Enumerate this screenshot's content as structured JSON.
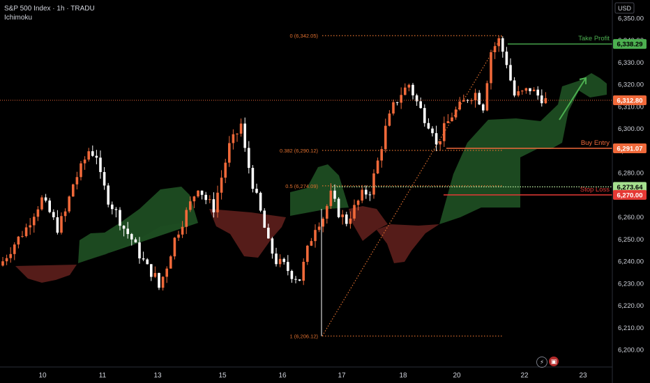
{
  "header": {
    "title": "S&P 500 Index · 1h · TRADU",
    "indicator": "Ichimoku"
  },
  "colors": {
    "background": "#000000",
    "candle_up": "#f0693a",
    "candle_down": "#ffffff",
    "cloud_bull": "#1d4d22",
    "cloud_bear": "#5a1e1a",
    "take_profit": "#4caf50",
    "buy_entry": "#f0693a",
    "stop_loss": "#e53935",
    "fib": "#e0702f",
    "current_price": "#f0693a",
    "arrow": "#4caf50"
  },
  "chart_data": {
    "type": "candlestick",
    "currency": "USD",
    "x_ticks": [
      "10",
      "11",
      "13",
      "15",
      "16",
      "17",
      "18",
      "20",
      "22",
      "23"
    ],
    "y_ticks": [
      "6,350.00",
      "6,340.00",
      "6,330.00",
      "6,320.00",
      "6,310.00",
      "6,300.00",
      "6,290.00",
      "6,280.00",
      "6,270.00",
      "6,260.00",
      "6,250.00",
      "6,240.00",
      "6,230.00",
      "6,220.00",
      "6,210.00",
      "6,200.00"
    ],
    "ylim": [
      6196,
      6354
    ],
    "fib_levels": [
      {
        "label": "0 (6,342.05)",
        "value": 6342.05
      },
      {
        "label": "0.382 (6,290.12)",
        "value": 6290.12
      },
      {
        "label": "0.5 (6,274.09)",
        "value": 6274.09
      },
      {
        "label": "1 (6,206.12)",
        "value": 6206.12
      }
    ],
    "levels": [
      {
        "name": "Take Profit",
        "value": 6338.29,
        "tag": "6,338.29"
      },
      {
        "name": "Buy Entry",
        "value": 6291.07,
        "tag": "6,291.07"
      },
      {
        "name": "Stop Loss",
        "value": 6270.0,
        "tag": "6,270.00"
      },
      {
        "name": "",
        "value": 6273.64,
        "tag": "6,273.64"
      }
    ],
    "current_price": {
      "value": 6312.8,
      "tag": "6,312.80"
    },
    "close_path": [
      [
        0,
        6240
      ],
      [
        3,
        6248
      ],
      [
        6,
        6255
      ],
      [
        8,
        6262
      ],
      [
        10,
        6268
      ],
      [
        12,
        6262
      ],
      [
        14,
        6255
      ],
      [
        16,
        6262
      ],
      [
        18,
        6275
      ],
      [
        20,
        6282
      ],
      [
        22,
        6290
      ],
      [
        24,
        6288
      ],
      [
        25,
        6278
      ],
      [
        27,
        6268
      ],
      [
        29,
        6262
      ],
      [
        31,
        6255
      ],
      [
        33,
        6250
      ],
      [
        35,
        6243
      ],
      [
        37,
        6237
      ],
      [
        39,
        6233
      ],
      [
        40,
        6228
      ],
      [
        42,
        6238
      ],
      [
        44,
        6250
      ],
      [
        46,
        6258
      ],
      [
        48,
        6266
      ],
      [
        50,
        6274
      ],
      [
        52,
        6268
      ],
      [
        54,
        6264
      ],
      [
        56,
        6278
      ],
      [
        58,
        6292
      ],
      [
        60,
        6298
      ],
      [
        61,
        6302
      ],
      [
        62,
        6290
      ],
      [
        64,
        6275
      ],
      [
        66,
        6262
      ],
      [
        68,
        6248
      ],
      [
        70,
        6240
      ],
      [
        72,
        6238
      ],
      [
        74,
        6234
      ],
      [
        76,
        6232
      ],
      [
        78,
        6245
      ],
      [
        80,
        6256
      ],
      [
        82,
        6260
      ],
      [
        84,
        6270
      ],
      [
        86,
        6262
      ],
      [
        88,
        6258
      ],
      [
        90,
        6264
      ],
      [
        92,
        6270
      ],
      [
        94,
        6272
      ],
      [
        96,
        6285
      ],
      [
        98,
        6300
      ],
      [
        100,
        6310
      ],
      [
        102,
        6316
      ],
      [
        104,
        6320
      ],
      [
        106,
        6312
      ],
      [
        108,
        6305
      ],
      [
        110,
        6300
      ],
      [
        111,
        6292
      ],
      [
        113,
        6300
      ],
      [
        115,
        6306
      ],
      [
        117,
        6310
      ],
      [
        119,
        6314
      ],
      [
        121,
        6316
      ],
      [
        123,
        6310
      ],
      [
        125,
        6335
      ],
      [
        127,
        6340
      ],
      [
        129,
        6330
      ],
      [
        130,
        6322
      ],
      [
        131,
        6315
      ],
      [
        133,
        6316
      ],
      [
        135,
        6318
      ],
      [
        137,
        6315
      ],
      [
        139,
        6312.8
      ]
    ]
  }
}
